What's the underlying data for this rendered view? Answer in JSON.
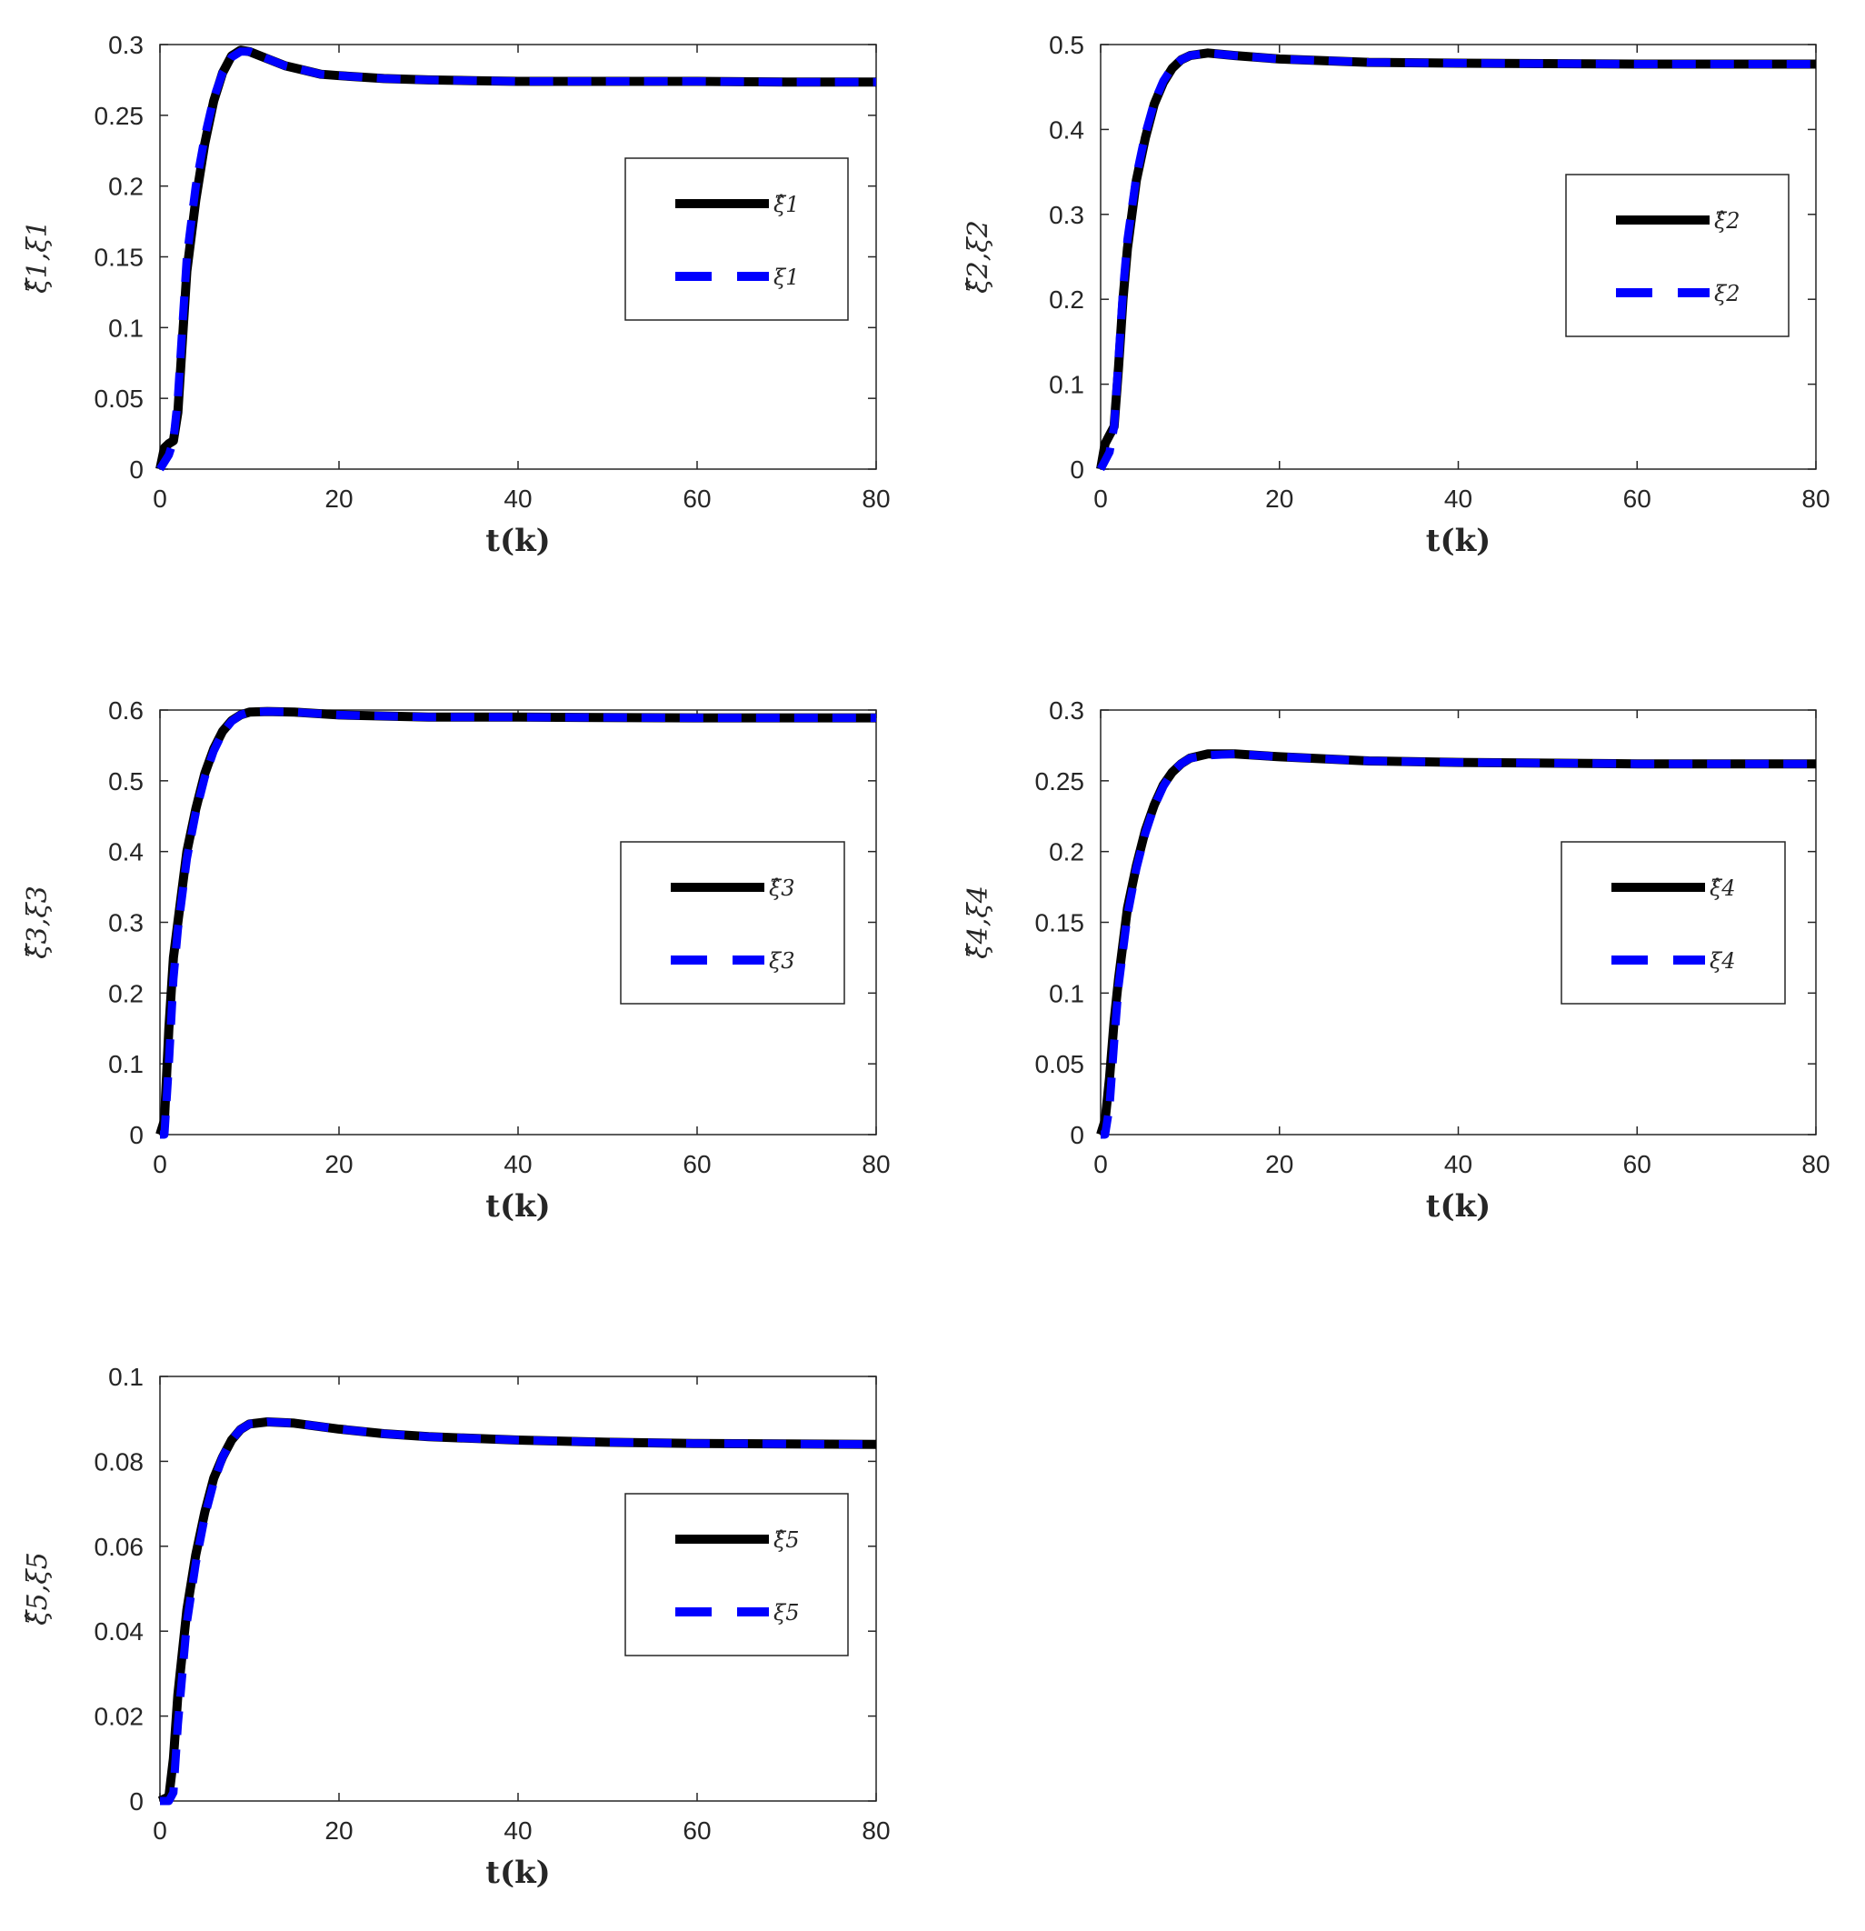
{
  "colors": {
    "estimate": "#000000",
    "actual": "#0000ff",
    "axes": "#262626",
    "background": "#ffffff"
  },
  "chart_data": [
    {
      "type": "line",
      "xlabel": "t(k)",
      "ylabel": "ξ̂1,ξ1",
      "xlim": [
        0,
        80
      ],
      "ylim": [
        0,
        0.3
      ],
      "xticks": [
        "0",
        "20",
        "40",
        "60",
        "80"
      ],
      "yticks": [
        "0",
        "0.05",
        "0.1",
        "0.15",
        "0.2",
        "0.25",
        "0.3"
      ],
      "grid": false,
      "legend_position": "right",
      "series": [
        {
          "name": "ξ̂1",
          "style": "solid",
          "color": "#000000",
          "x": [
            0,
            0.5,
            1,
            1.5,
            2,
            2.5,
            3,
            4,
            5,
            6,
            7,
            8,
            9,
            10,
            12,
            14,
            16,
            18,
            20,
            25,
            30,
            35,
            40,
            50,
            60,
            70,
            80
          ],
          "y": [
            0,
            0.015,
            0.018,
            0.02,
            0.04,
            0.09,
            0.14,
            0.19,
            0.23,
            0.26,
            0.28,
            0.292,
            0.296,
            0.295,
            0.29,
            0.285,
            0.282,
            0.279,
            0.278,
            0.276,
            0.275,
            0.2745,
            0.274,
            0.274,
            0.274,
            0.2735,
            0.2735
          ]
        },
        {
          "name": "ξ1",
          "style": "dashed",
          "color": "#0000ff",
          "x": [
            0,
            0.5,
            1,
            1.5,
            2,
            2.5,
            3,
            4,
            5,
            6,
            7,
            8,
            9,
            10,
            12,
            14,
            16,
            18,
            20,
            25,
            30,
            35,
            40,
            50,
            60,
            70,
            80
          ],
          "y": [
            0,
            0.005,
            0.01,
            0.02,
            0.05,
            0.1,
            0.15,
            0.2,
            0.235,
            0.262,
            0.28,
            0.291,
            0.295,
            0.295,
            0.29,
            0.285,
            0.282,
            0.279,
            0.278,
            0.276,
            0.275,
            0.2745,
            0.274,
            0.274,
            0.274,
            0.2735,
            0.2735
          ]
        }
      ]
    },
    {
      "type": "line",
      "xlabel": "t(k)",
      "ylabel": "ξ̂2,ξ2",
      "xlim": [
        0,
        80
      ],
      "ylim": [
        0,
        0.5
      ],
      "xticks": [
        "0",
        "20",
        "40",
        "60",
        "80"
      ],
      "yticks": [
        "0",
        "0.1",
        "0.2",
        "0.3",
        "0.4",
        "0.5"
      ],
      "grid": false,
      "legend_position": "right",
      "series": [
        {
          "name": "ξ̂2",
          "style": "solid",
          "color": "#000000",
          "x": [
            0,
            0.5,
            1,
            1.5,
            2,
            2.5,
            3,
            4,
            5,
            6,
            7,
            8,
            9,
            10,
            12,
            15,
            20,
            30,
            40,
            60,
            80
          ],
          "y": [
            0,
            0.03,
            0.04,
            0.05,
            0.12,
            0.2,
            0.26,
            0.34,
            0.39,
            0.43,
            0.455,
            0.472,
            0.482,
            0.487,
            0.49,
            0.487,
            0.483,
            0.479,
            0.478,
            0.477,
            0.477
          ]
        },
        {
          "name": "ξ2",
          "style": "dashed",
          "color": "#0000ff",
          "x": [
            0,
            0.5,
            1,
            1.5,
            2,
            2.5,
            3,
            4,
            5,
            6,
            7,
            8,
            9,
            10,
            12,
            15,
            20,
            30,
            40,
            60,
            80
          ],
          "y": [
            0,
            0.01,
            0.02,
            0.05,
            0.13,
            0.21,
            0.27,
            0.345,
            0.395,
            0.432,
            0.457,
            0.473,
            0.482,
            0.487,
            0.49,
            0.487,
            0.483,
            0.479,
            0.478,
            0.477,
            0.477
          ]
        }
      ]
    },
    {
      "type": "line",
      "xlabel": "t(k)",
      "ylabel": "ξ̂3,ξ3",
      "xlim": [
        0,
        80
      ],
      "ylim": [
        0,
        0.6
      ],
      "xticks": [
        "0",
        "20",
        "40",
        "60",
        "80"
      ],
      "yticks": [
        "0",
        "0.1",
        "0.2",
        "0.3",
        "0.4",
        "0.5",
        "0.6"
      ],
      "grid": false,
      "legend_position": "right",
      "series": [
        {
          "name": "ξ̂3",
          "style": "solid",
          "color": "#000000",
          "x": [
            0,
            0.5,
            1,
            1.5,
            2,
            3,
            4,
            5,
            6,
            7,
            8,
            9,
            10,
            12,
            15,
            20,
            30,
            40,
            60,
            80
          ],
          "y": [
            0,
            0.02,
            0.15,
            0.25,
            0.3,
            0.4,
            0.46,
            0.51,
            0.545,
            0.57,
            0.585,
            0.593,
            0.597,
            0.598,
            0.597,
            0.593,
            0.59,
            0.59,
            0.589,
            0.589
          ]
        },
        {
          "name": "ξ3",
          "style": "dashed",
          "color": "#0000ff",
          "x": [
            0,
            0.5,
            1,
            1.5,
            2,
            3,
            4,
            5,
            6,
            7,
            8,
            9,
            10,
            12,
            15,
            20,
            30,
            40,
            60,
            80
          ],
          "y": [
            0,
            0,
            0.1,
            0.22,
            0.29,
            0.39,
            0.455,
            0.505,
            0.542,
            0.568,
            0.584,
            0.593,
            0.597,
            0.598,
            0.597,
            0.593,
            0.59,
            0.59,
            0.589,
            0.589
          ]
        }
      ]
    },
    {
      "type": "line",
      "xlabel": "t(k)",
      "ylabel": "ξ̂4,ξ4",
      "xlim": [
        0,
        80
      ],
      "ylim": [
        0,
        0.3
      ],
      "xticks": [
        "0",
        "20",
        "40",
        "60",
        "80"
      ],
      "yticks": [
        "0",
        "0.05",
        "0.1",
        "0.15",
        "0.2",
        "0.25",
        "0.3"
      ],
      "grid": false,
      "legend_position": "right",
      "series": [
        {
          "name": "ξ̂4",
          "style": "solid",
          "color": "#000000",
          "x": [
            0,
            0.5,
            1,
            1.5,
            2,
            3,
            4,
            5,
            6,
            7,
            8,
            9,
            10,
            12,
            15,
            20,
            30,
            40,
            60,
            80
          ],
          "y": [
            0,
            0.01,
            0.04,
            0.08,
            0.11,
            0.16,
            0.19,
            0.215,
            0.233,
            0.247,
            0.256,
            0.262,
            0.266,
            0.269,
            0.269,
            0.267,
            0.264,
            0.263,
            0.262,
            0.262
          ]
        },
        {
          "name": "ξ4",
          "style": "dashed",
          "color": "#0000ff",
          "x": [
            0,
            0.5,
            1,
            1.5,
            2,
            3,
            4,
            5,
            6,
            7,
            8,
            9,
            10,
            12,
            15,
            20,
            30,
            40,
            60,
            80
          ],
          "y": [
            0,
            0,
            0.02,
            0.065,
            0.105,
            0.155,
            0.188,
            0.213,
            0.232,
            0.246,
            0.256,
            0.262,
            0.266,
            0.268,
            0.269,
            0.267,
            0.264,
            0.263,
            0.262,
            0.262
          ]
        }
      ]
    },
    {
      "type": "line",
      "xlabel": "t(k)",
      "ylabel": "ξ̂5,ξ5",
      "xlim": [
        0,
        80
      ],
      "ylim": [
        0,
        0.1
      ],
      "xticks": [
        "0",
        "20",
        "40",
        "60",
        "80"
      ],
      "yticks": [
        "0",
        "0.02",
        "0.04",
        "0.06",
        "0.08",
        "0.1"
      ],
      "grid": false,
      "legend_position": "right",
      "series": [
        {
          "name": "ξ̂5",
          "style": "solid",
          "color": "#000000",
          "x": [
            0,
            1,
            1.5,
            2,
            3,
            4,
            5,
            6,
            7,
            8,
            9,
            10,
            12,
            15,
            20,
            25,
            30,
            40,
            50,
            60,
            80
          ],
          "y": [
            0,
            0.001,
            0.01,
            0.025,
            0.045,
            0.058,
            0.068,
            0.076,
            0.081,
            0.085,
            0.0875,
            0.0888,
            0.0893,
            0.089,
            0.0876,
            0.0865,
            0.0858,
            0.085,
            0.0845,
            0.0842,
            0.084
          ]
        },
        {
          "name": "ξ5",
          "style": "dashed",
          "color": "#0000ff",
          "x": [
            0,
            1,
            1.5,
            2,
            3,
            4,
            5,
            6,
            7,
            8,
            9,
            10,
            12,
            15,
            20,
            25,
            30,
            40,
            50,
            60,
            80
          ],
          "y": [
            0,
            0,
            0.002,
            0.018,
            0.042,
            0.056,
            0.067,
            0.075,
            0.081,
            0.085,
            0.0875,
            0.0888,
            0.0893,
            0.089,
            0.0876,
            0.0865,
            0.0858,
            0.085,
            0.0845,
            0.0842,
            0.084
          ]
        }
      ]
    }
  ]
}
